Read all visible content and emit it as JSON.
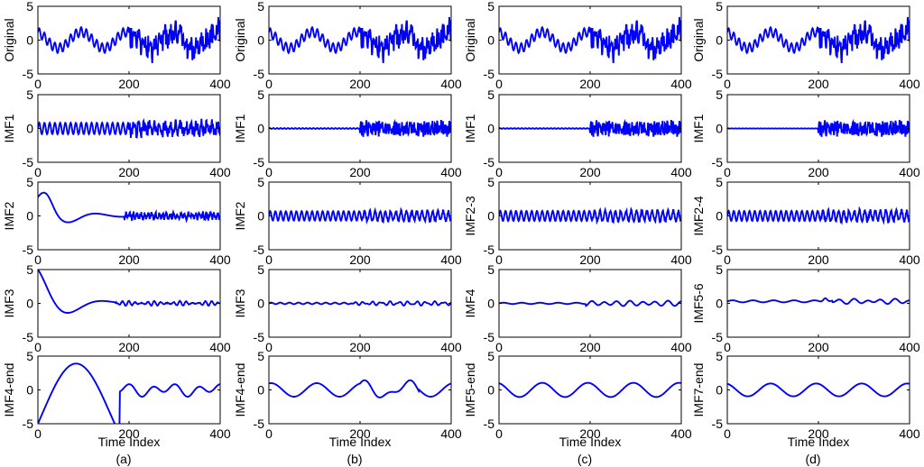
{
  "chart_data": {
    "type": "line",
    "color": "#0000ff",
    "x_axis": {
      "label": "Time Index",
      "ticks": [
        0,
        200,
        400
      ],
      "xlim": [
        0,
        400
      ]
    },
    "columns": [
      {
        "caption": "(a)",
        "panels": [
          {
            "ylabel": "Original",
            "ylim": [
              -5,
              5
            ],
            "yticks": [
              5,
              0,
              -5
            ],
            "signal": "original"
          },
          {
            "ylabel": "IMF1",
            "ylim": [
              -5,
              5
            ],
            "yticks": [
              5,
              0,
              -5
            ],
            "signal": "imf1_a"
          },
          {
            "ylabel": "IMF2",
            "ylim": [
              -5,
              5
            ],
            "yticks": [
              5,
              0,
              -5
            ],
            "signal": "imf2_a"
          },
          {
            "ylabel": "IMF3",
            "ylim": [
              -5,
              5
            ],
            "yticks": [
              5,
              0,
              -5
            ],
            "signal": "imf3_a"
          },
          {
            "ylabel": "IMF4-end",
            "ylim": [
              -5,
              5
            ],
            "yticks": [
              5,
              0,
              -5
            ],
            "signal": "res_a"
          }
        ]
      },
      {
        "caption": "(b)",
        "panels": [
          {
            "ylabel": "Original",
            "ylim": [
              -5,
              5
            ],
            "yticks": [
              5,
              0,
              -5
            ],
            "signal": "original"
          },
          {
            "ylabel": "IMF1",
            "ylim": [
              -5,
              5
            ],
            "yticks": [
              5,
              0,
              -5
            ],
            "signal": "imf1_b"
          },
          {
            "ylabel": "IMF2",
            "ylim": [
              -5,
              5
            ],
            "yticks": [
              5,
              0,
              -5
            ],
            "signal": "imf2_b"
          },
          {
            "ylabel": "IMF3",
            "ylim": [
              -5,
              5
            ],
            "yticks": [
              5,
              0,
              -5
            ],
            "signal": "imf3_b"
          },
          {
            "ylabel": "IMF4-end",
            "ylim": [
              -5,
              5
            ],
            "yticks": [
              5,
              0,
              -5
            ],
            "signal": "res_b"
          }
        ]
      },
      {
        "caption": "(c)",
        "panels": [
          {
            "ylabel": "Original",
            "ylim": [
              -5,
              5
            ],
            "yticks": [
              5,
              0,
              -5
            ],
            "signal": "original"
          },
          {
            "ylabel": "IMF1",
            "ylim": [
              -5,
              5
            ],
            "yticks": [
              5,
              0,
              -5
            ],
            "signal": "imf1_c"
          },
          {
            "ylabel": "IMF2-3",
            "ylim": [
              -5,
              5
            ],
            "yticks": [
              5,
              0,
              -5
            ],
            "signal": "imf2_c"
          },
          {
            "ylabel": "IMF4",
            "ylim": [
              -5,
              5
            ],
            "yticks": [
              5,
              0,
              -5
            ],
            "signal": "imf4_c"
          },
          {
            "ylabel": "IMF5-end",
            "ylim": [
              -5,
              5
            ],
            "yticks": [
              5,
              0,
              -5
            ],
            "signal": "res_c"
          }
        ]
      },
      {
        "caption": "(d)",
        "panels": [
          {
            "ylabel": "Original",
            "ylim": [
              -5,
              5
            ],
            "yticks": [
              5,
              0,
              -5
            ],
            "signal": "original"
          },
          {
            "ylabel": "IMF1",
            "ylim": [
              -5,
              5
            ],
            "yticks": [
              5,
              0,
              -5
            ],
            "signal": "imf1_d"
          },
          {
            "ylabel": "IMF2-4",
            "ylim": [
              -5,
              5
            ],
            "yticks": [
              5,
              0,
              -5
            ],
            "signal": "imf2_d"
          },
          {
            "ylabel": "IMF5-6",
            "ylim": [
              -5,
              5
            ],
            "yticks": [
              5,
              0,
              -5
            ],
            "signal": "imf5_d"
          },
          {
            "ylabel": "IMF7-end",
            "ylim": [
              -5,
              5
            ],
            "yticks": [
              5,
              0,
              -5
            ],
            "signal": "res_d"
          }
        ]
      }
    ]
  }
}
